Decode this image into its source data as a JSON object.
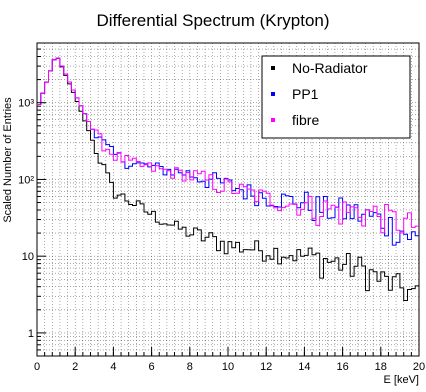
{
  "chart_data": {
    "type": "line",
    "title": "Differential Spectrum (Krypton)",
    "xlabel": "E [keV]",
    "ylabel": "Scaled Number of Entries",
    "xlim": [
      0,
      20
    ],
    "ylim": [
      0.5,
      6000
    ],
    "yscale": "log",
    "grid": true,
    "legend_position": "top-right",
    "x_ticks": [
      "0",
      "2",
      "4",
      "6",
      "8",
      "10",
      "12",
      "14",
      "16",
      "18",
      "20"
    ],
    "y_ticks": [
      {
        "value": 1,
        "label": "1"
      },
      {
        "value": 10,
        "label": "10"
      },
      {
        "value": 100,
        "label": "10²"
      },
      {
        "value": 1000,
        "label": "10³"
      }
    ],
    "bin_width": 0.2,
    "series": [
      {
        "name": "No-Radiator",
        "color": "#000000",
        "x": [
          0,
          1,
          2,
          3,
          4,
          5,
          6,
          7,
          8,
          9,
          10,
          11,
          12,
          13,
          14,
          15,
          16,
          17,
          18,
          19,
          20
        ],
        "y": [
          800,
          4300,
          1200,
          280,
          70,
          50,
          35,
          26,
          20,
          17,
          14,
          13,
          12,
          11,
          10,
          9,
          8,
          7,
          5,
          4,
          3
        ]
      },
      {
        "name": "PP1",
        "color": "#0000ff",
        "x": [
          0,
          1,
          2,
          3,
          4,
          5,
          6,
          7,
          8,
          9,
          10,
          11,
          12,
          13,
          14,
          15,
          16,
          17,
          18,
          19,
          20
        ],
        "y": [
          800,
          4300,
          1300,
          400,
          210,
          160,
          145,
          130,
          120,
          100,
          85,
          70,
          60,
          55,
          50,
          42,
          40,
          35,
          30,
          22,
          16
        ]
      },
      {
        "name": "fibre",
        "color": "#ff00ff",
        "x": [
          0,
          1,
          2,
          3,
          4,
          5,
          6,
          7,
          8,
          9,
          10,
          11,
          12,
          13,
          14,
          15,
          16,
          17,
          18,
          19,
          20
        ],
        "y": [
          800,
          4300,
          1300,
          400,
          210,
          160,
          140,
          125,
          115,
          95,
          80,
          68,
          58,
          50,
          45,
          42,
          40,
          38,
          35,
          28,
          25
        ]
      }
    ]
  }
}
